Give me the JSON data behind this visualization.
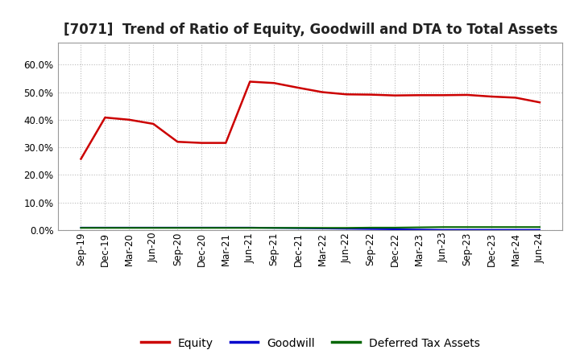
{
  "title": "[7071]  Trend of Ratio of Equity, Goodwill and DTA to Total Assets",
  "x_labels": [
    "Sep-19",
    "Dec-19",
    "Mar-20",
    "Jun-20",
    "Sep-20",
    "Dec-20",
    "Mar-21",
    "Jun-21",
    "Sep-21",
    "Dec-21",
    "Mar-22",
    "Jun-22",
    "Sep-22",
    "Dec-22",
    "Mar-23",
    "Jun-23",
    "Sep-23",
    "Dec-23",
    "Mar-24",
    "Jun-24"
  ],
  "equity": [
    0.258,
    0.408,
    0.4,
    0.385,
    0.32,
    0.316,
    0.316,
    0.538,
    0.533,
    0.516,
    0.5,
    0.492,
    0.491,
    0.488,
    0.489,
    0.489,
    0.49,
    0.484,
    0.48,
    0.463
  ],
  "goodwill": [
    0.009,
    0.009,
    0.009,
    0.009,
    0.009,
    0.009,
    0.009,
    0.009,
    0.008,
    0.007,
    0.006,
    0.005,
    0.004,
    0.003,
    0.002,
    0.001,
    0.001,
    0.001,
    0.001,
    0.001
  ],
  "dta": [
    0.008,
    0.008,
    0.008,
    0.008,
    0.008,
    0.008,
    0.008,
    0.008,
    0.008,
    0.008,
    0.008,
    0.008,
    0.009,
    0.009,
    0.01,
    0.011,
    0.011,
    0.011,
    0.011,
    0.011
  ],
  "equity_color": "#cc0000",
  "goodwill_color": "#0000cc",
  "dta_color": "#006600",
  "ylim": [
    0.0,
    0.68
  ],
  "yticks": [
    0.0,
    0.1,
    0.2,
    0.3,
    0.4,
    0.5,
    0.6
  ],
  "background_color": "#ffffff",
  "grid_color": "#bbbbbb",
  "title_fontsize": 12,
  "tick_fontsize": 8.5,
  "legend_fontsize": 10
}
